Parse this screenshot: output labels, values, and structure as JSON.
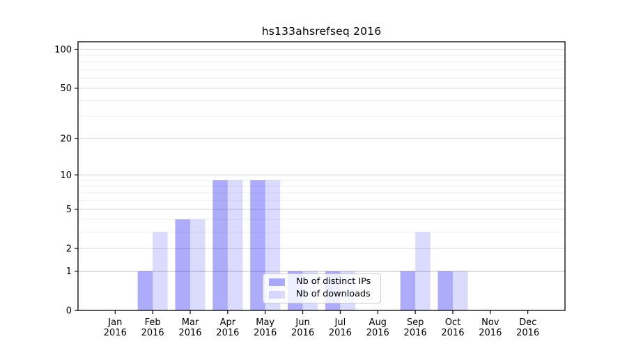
{
  "title": "hs133ahsrefseq 2016",
  "chart_data": {
    "type": "bar",
    "title": "hs133ahsrefseq 2016",
    "categories": [
      "Jan 2016",
      "Feb 2016",
      "Mar 2016",
      "Apr 2016",
      "May 2016",
      "Jun 2016",
      "Jul 2016",
      "Aug 2016",
      "Sep 2016",
      "Oct 2016",
      "Nov 2016",
      "Dec 2016"
    ],
    "series": [
      {
        "name": "Nb of distinct IPs",
        "fill": "rgba(25,25,243,0.36)",
        "solid_color": "#acacfa",
        "values": [
          0,
          1,
          4,
          9,
          9,
          1,
          1,
          0,
          1,
          1,
          0,
          0
        ]
      },
      {
        "name": "Nb of downloads",
        "fill": "rgba(25,25,243,0.155)",
        "solid_color": "#dbdbfa",
        "values": [
          0,
          3,
          4,
          9,
          9,
          1,
          1,
          0,
          3,
          1,
          0,
          0
        ]
      }
    ],
    "yscale": "log1p",
    "ylim": [
      0,
      115
    ],
    "y_major_ticks": [
      0,
      1,
      2,
      5,
      10,
      20,
      50,
      100
    ],
    "y_minor_ticks": [
      3,
      4,
      6,
      7,
      8,
      9,
      30,
      40,
      60,
      70,
      80,
      90
    ],
    "xlabel": "",
    "ylabel": "",
    "grid": true,
    "legend_location": "inside-lower-center"
  },
  "colors": {
    "background": "#ffffff",
    "axis_spine": "#000000",
    "tick_label": "#000000",
    "grid_major": "#d2d2d2",
    "grid_minor": "#eeeeee",
    "grid_unit_line": "#b8b8b8",
    "legend_border": "#c9c9c9",
    "legend_background": "rgba(255,255,255,0.8)"
  }
}
